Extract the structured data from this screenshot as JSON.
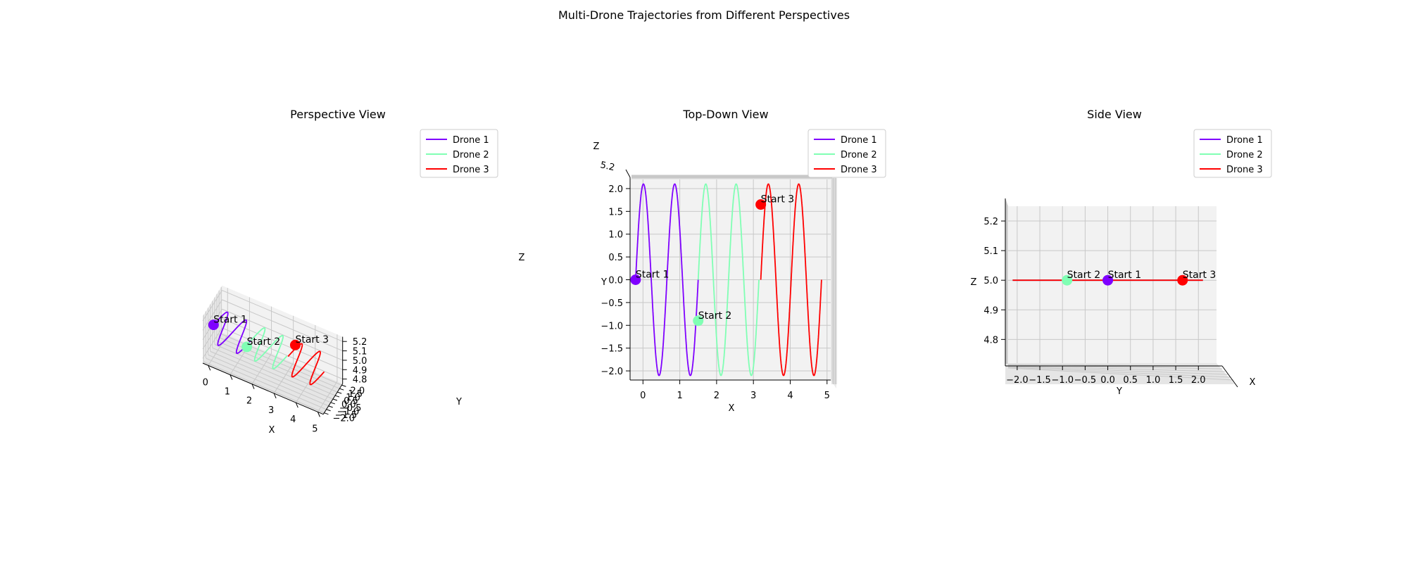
{
  "figure": {
    "title": "Multi-Drone Trajectories from Different Perspectives"
  },
  "colors": {
    "Drone 1": "#7f00ff",
    "Drone 2": "#80ffb4",
    "Drone 3": "#ff0000"
  },
  "chart_data": [
    {
      "type": "line",
      "subtitle": "Perspective View",
      "view": "perspective",
      "xlabel": "X",
      "ylabel": "Y",
      "zlabel": "Z",
      "x_ticks": [
        "0",
        "1",
        "2",
        "3",
        "4",
        "5"
      ],
      "y_ticks": [
        "−2.0",
        "−1.5",
        "−1.0",
        "−0.5",
        "0.0",
        "0.5",
        "1.0",
        "1.5",
        "2.0"
      ],
      "z_ticks": [
        "4.8",
        "4.9",
        "5.0",
        "5.1",
        "5.2"
      ],
      "xlim": [
        -0.25,
        5.25
      ],
      "ylim": [
        -2.2,
        2.2
      ],
      "zlim": [
        4.75,
        5.25
      ],
      "legend": {
        "placement": "upper right",
        "entries": [
          "Drone 1",
          "Drone 2",
          "Drone 3"
        ]
      },
      "grid": true
    },
    {
      "type": "line",
      "subtitle": "Top-Down View",
      "view": "top",
      "xlabel": "X",
      "ylabel": "Y",
      "zlabel": "Z",
      "x_ticks": [
        "0",
        "1",
        "2",
        "3",
        "4",
        "5"
      ],
      "y_ticks": [
        "−2.0",
        "−1.5",
        "−1.0",
        "−0.5",
        "0.0",
        "0.5",
        "1.0",
        "1.5",
        "2.0"
      ],
      "z_ticks": [
        "5.2"
      ],
      "xlim": [
        -0.35,
        5.1
      ],
      "ylim": [
        -2.2,
        2.2
      ],
      "legend": {
        "placement": "upper right",
        "entries": [
          "Drone 1",
          "Drone 2",
          "Drone 3"
        ]
      },
      "grid": true
    },
    {
      "type": "line",
      "subtitle": "Side View",
      "view": "side",
      "xlabel": "X",
      "ylabel": "Y",
      "zlabel": "Z",
      "y_ticks": [
        "−2.0",
        "−1.5",
        "−1.0",
        "−0.5",
        "0.0",
        "0.5",
        "1.0",
        "1.5",
        "2.0"
      ],
      "z_ticks": [
        "4.8",
        "4.9",
        "5.0",
        "5.1",
        "5.2"
      ],
      "ylim": [
        -2.2,
        2.4
      ],
      "zlim": [
        4.72,
        5.25
      ],
      "legend": {
        "placement": "upper right",
        "entries": [
          "Drone 1",
          "Drone 2",
          "Drone 3"
        ]
      },
      "grid": true
    }
  ],
  "series": [
    {
      "name": "Drone 1",
      "start_label": "Start 1",
      "x_range": [
        -0.2,
        1.5
      ],
      "y_amplitude": 2.1,
      "cycles": 2,
      "z": 5.0,
      "start": {
        "x": -0.2,
        "y": 0.0,
        "z": 5.0
      }
    },
    {
      "name": "Drone 2",
      "start_label": "Start 2",
      "x_range": [
        1.5,
        3.15
      ],
      "y_amplitude": 2.1,
      "cycles": 2,
      "z": 5.0,
      "start": {
        "x": 1.5,
        "y": -0.9,
        "z": 5.0
      }
    },
    {
      "name": "Drone 3",
      "start_label": "Start 3",
      "x_range": [
        3.2,
        4.85
      ],
      "y_amplitude": 2.1,
      "cycles": 2,
      "z": 5.0,
      "start": {
        "x": 3.2,
        "y": 1.65,
        "z": 5.0
      }
    }
  ]
}
